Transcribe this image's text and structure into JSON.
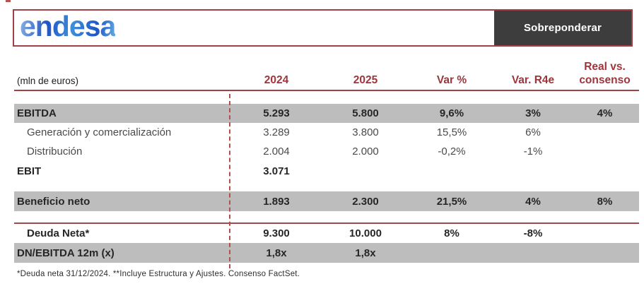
{
  "header": {
    "logo_text": "endesa",
    "rating_label": "Sobreponderar"
  },
  "table": {
    "unit_label": "(mln de euros)",
    "columns": [
      "2024",
      "2025",
      "Var %",
      "Var. R4e",
      "Real vs. consenso"
    ],
    "rows": [
      {
        "label": "EBITDA",
        "values": [
          "5.293",
          "5.800",
          "9,6%",
          "3%",
          "4%"
        ]
      },
      {
        "label": "Generación y comercialización",
        "values": [
          "3.289",
          "3.800",
          "15,5%",
          "6%",
          ""
        ]
      },
      {
        "label": "Distribución",
        "values": [
          "2.004",
          "2.000",
          "-0,2%",
          "-1%",
          ""
        ]
      },
      {
        "label": "EBIT",
        "values": [
          "3.071",
          "",
          "",
          "",
          ""
        ]
      },
      {
        "label": "Beneficio neto",
        "values": [
          "1.893",
          "2.300",
          "21,5%",
          "4%",
          "8%"
        ]
      },
      {
        "label": "Deuda Neta*",
        "values": [
          "9.300",
          "10.000",
          "8%",
          "-8%",
          ""
        ]
      },
      {
        "label": "DN/EBITDA 12m (x)",
        "values": [
          "1,8x",
          "1,8x",
          "",
          "",
          ""
        ]
      }
    ]
  },
  "footnote": "*Deuda neta 31/12/2024.  **Incluye Estructura y Ajustes. Consenso FactSet.",
  "colors": {
    "accent_red": "#9e3a3e",
    "band_gray": "#bdbdbd",
    "badge_bg": "#3d3d3d",
    "logo_blue": "#2f6bd0"
  }
}
